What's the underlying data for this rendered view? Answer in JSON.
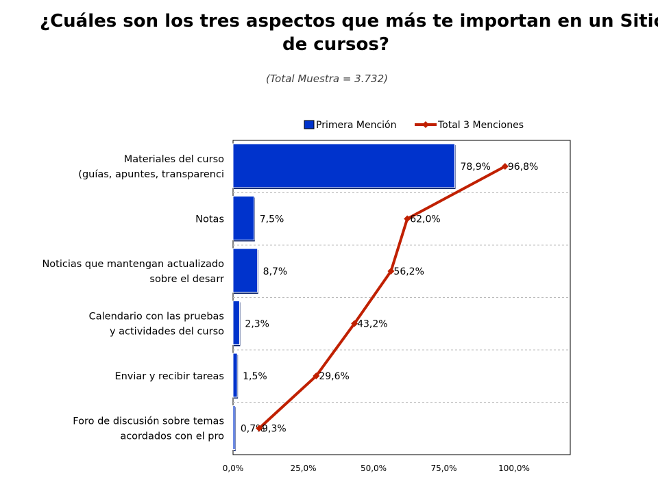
{
  "title_line1": "¿Cuáles son los tres aspectos que más te importan en un Sitio Web",
  "title_line2": "de cursos?",
  "subtitle": "(Total Muestra = 3.732)",
  "colors": {
    "bar": "#0033CC",
    "bar_shadow": "#001A66",
    "line": "#C02000",
    "grid": "#BBBBBB"
  },
  "chart_data": {
    "type": "bar",
    "orientation": "horizontal",
    "categories": [
      [
        "Materiales del curso",
        "(guías, apuntes, transparenci"
      ],
      [
        "Notas"
      ],
      [
        "Noticias que mantengan actualizado",
        "sobre el desarr"
      ],
      [
        "Calendario con las pruebas",
        "y actividades del curso"
      ],
      [
        "Enviar y recibir tareas"
      ],
      [
        "Foro de discusión sobre temas",
        "acordados con el pro"
      ]
    ],
    "series": [
      {
        "name": "Primera Mención",
        "type": "bar",
        "values": [
          78.9,
          7.5,
          8.7,
          2.3,
          1.5,
          0.7
        ],
        "labels": [
          "78,9%",
          "7,5%",
          "8,7%",
          "2,3%",
          "1,5%",
          "0,7%"
        ]
      },
      {
        "name": "Total 3 Menciones",
        "type": "line",
        "values": [
          96.8,
          62.0,
          56.2,
          43.2,
          29.6,
          9.3
        ],
        "labels": [
          "96,8%",
          "62,0%",
          "56,2%",
          "43,2%",
          "29,6%",
          "9,3%"
        ]
      }
    ],
    "xlim": [
      0,
      120
    ],
    "ticks": [
      0,
      25,
      50,
      75,
      100
    ],
    "tick_labels": [
      "0,0%",
      "25,0%",
      "50,0%",
      "75,0%",
      "100,0%"
    ],
    "grid": "horizontal-dashed",
    "legend_position": "top-right"
  }
}
